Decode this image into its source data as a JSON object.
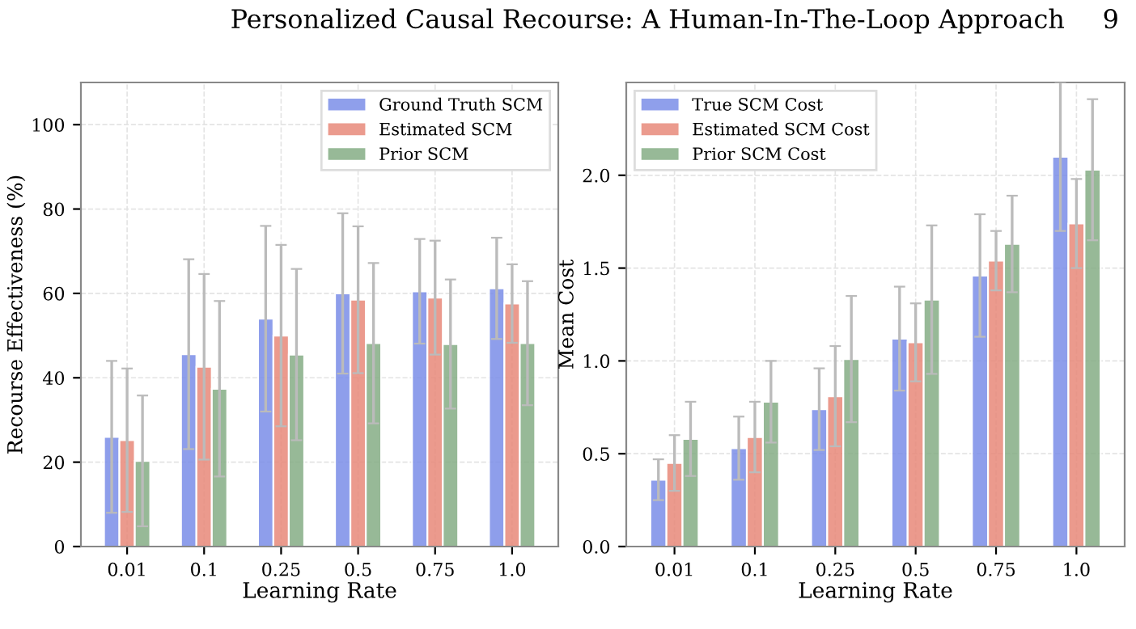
{
  "chart_data": [
    {
      "type": "bar",
      "annotations": [
        "Personalized Causal Recourse: A Human-In-The-Loop Approach",
        "9"
      ],
      "xlabel": "Learning Rate",
      "ylabel": "Recourse Effectiveness (%)",
      "categories": [
        "0.01",
        "0.1",
        "0.25",
        "0.5",
        "0.75",
        "1.0"
      ],
      "ylim": [
        0,
        110
      ],
      "yticks": [
        0,
        20,
        40,
        60,
        80,
        100
      ],
      "grid": true,
      "legend": "top right",
      "series": [
        {
          "name": "Ground Truth SCM",
          "color": "#7b8ee8",
          "values": [
            26,
            45.6,
            54,
            60,
            60.5,
            61.2
          ],
          "errors": [
            18,
            22.5,
            22,
            19,
            12.4,
            12
          ]
        },
        {
          "name": "Estimated SCM",
          "color": "#e8897a",
          "values": [
            25.2,
            42.6,
            50,
            58.5,
            59,
            57.6
          ],
          "errors": [
            17,
            22,
            21.5,
            17.4,
            13.5,
            9.3
          ]
        },
        {
          "name": "Prior SCM",
          "color": "#85ad85",
          "values": [
            20.3,
            37.4,
            45.5,
            48.2,
            48,
            48.2
          ],
          "errors": [
            15.5,
            20.8,
            20.3,
            19,
            15.3,
            14.7
          ]
        }
      ]
    },
    {
      "type": "bar",
      "xlabel": "Learning Rate",
      "ylabel": "Mean Cost",
      "categories": [
        "0.01",
        "0.1",
        "0.25",
        "0.5",
        "0.75",
        "1.0"
      ],
      "ylim": [
        0,
        2.5
      ],
      "yticks": [
        {
          "value": 0,
          "label": "0.0"
        },
        0.5,
        {
          "value": 1,
          "label": "1.0"
        },
        1.5,
        {
          "value": 2,
          "label": "2.0"
        }
      ],
      "grid": true,
      "legend": "top left",
      "series": [
        {
          "name": "True SCM Cost",
          "color": "#7b8ee8",
          "values": [
            0.36,
            0.53,
            0.74,
            1.12,
            1.46,
            2.1
          ],
          "errors": [
            0.11,
            0.17,
            0.22,
            0.28,
            0.33,
            0.4
          ]
        },
        {
          "name": "Estimated SCM Cost",
          "color": "#e8897a",
          "values": [
            0.45,
            0.59,
            0.81,
            1.1,
            1.54,
            1.74
          ],
          "errors": [
            0.15,
            0.19,
            0.27,
            0.21,
            0.16,
            0.24
          ]
        },
        {
          "name": "Prior SCM Cost",
          "color": "#85ad85",
          "values": [
            0.58,
            0.78,
            1.01,
            1.33,
            1.63,
            2.03
          ],
          "errors": [
            0.2,
            0.22,
            0.34,
            0.4,
            0.26,
            0.38
          ]
        }
      ]
    }
  ]
}
